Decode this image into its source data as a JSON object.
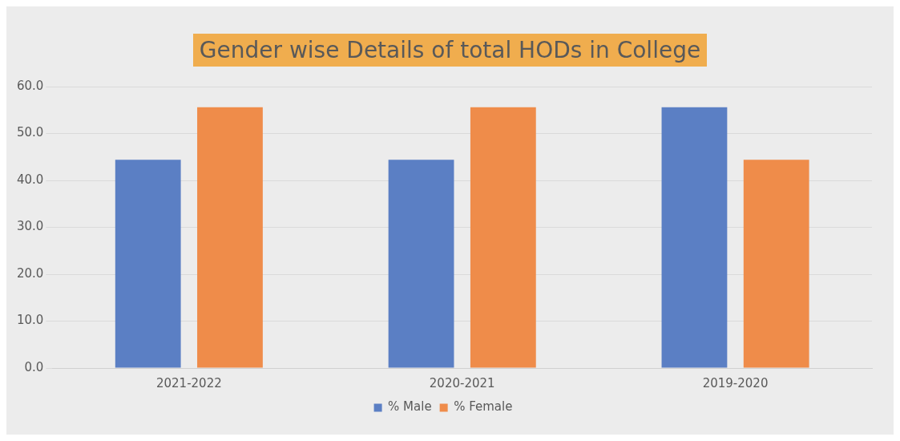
{
  "chart_data": {
    "type": "bar",
    "title": "Gender wise Details of total HODs in College",
    "categories": [
      "2021-2022",
      "2020-2021",
      "2019-2020"
    ],
    "series": [
      {
        "name": "% Male",
        "color": "#5b7fc4",
        "values": [
          44.4,
          44.4,
          55.6
        ]
      },
      {
        "name": "% Female",
        "color": "#ef8c4a",
        "values": [
          55.6,
          55.6,
          44.4
        ]
      }
    ],
    "ylim": [
      0,
      60
    ],
    "yticks": [
      {
        "value": 0,
        "label": "0.0"
      },
      {
        "value": 10,
        "label": "10.0"
      },
      {
        "value": 20,
        "label": "20.0"
      },
      {
        "value": 30,
        "label": "30.0"
      },
      {
        "value": 40,
        "label": "40.0"
      },
      {
        "value": 50,
        "label": "50.0"
      },
      {
        "value": 60,
        "label": "60.0"
      }
    ],
    "grid": "y",
    "legend": "bottom"
  }
}
